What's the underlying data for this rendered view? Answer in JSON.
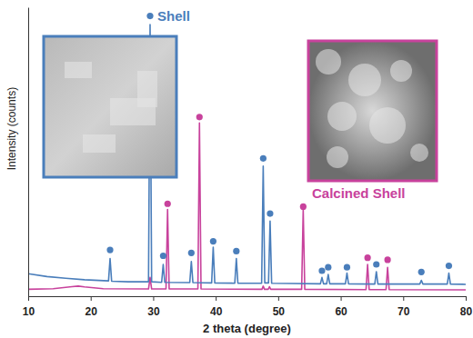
{
  "chart_data": {
    "type": "line",
    "x_label": "2 theta (degree)",
    "y_label": "Intensity (counts)",
    "xlim": [
      10,
      80
    ],
    "xticks": [
      10,
      20,
      30,
      40,
      50,
      60,
      70,
      80
    ],
    "ylim": [
      0,
      100
    ],
    "tick_labels": "x",
    "grid": false,
    "series": [
      {
        "name": "Shell",
        "color": "#4a7ebb",
        "marker": "circle",
        "x": [
          10,
          13,
          16,
          19,
          22.85,
          23.1,
          23.35,
          26,
          29.25,
          29.5,
          29.75,
          31.35,
          31.6,
          31.85,
          35.85,
          36.1,
          36.35,
          39.35,
          39.6,
          39.85,
          43.05,
          43.3,
          43.55,
          47.35,
          47.6,
          47.85,
          48.45,
          48.7,
          48.95,
          52,
          56.75,
          57.0,
          57.25,
          57.75,
          58.0,
          58.25,
          60.75,
          61.0,
          61.25,
          65.45,
          65.7,
          65.95,
          72.65,
          72.9,
          73.15,
          77.05,
          77.3,
          77.55,
          80
        ],
        "values": [
          7.8,
          6.8,
          6.2,
          5.7,
          5.3,
          13,
          5.2,
          5.0,
          5.0,
          94,
          5.0,
          4.8,
          11,
          4.8,
          4.7,
          12,
          4.7,
          4.6,
          17,
          4.6,
          4.5,
          13,
          4.5,
          4.5,
          45,
          4.6,
          4.6,
          26,
          4.5,
          4.4,
          4.3,
          6.5,
          4.3,
          4.3,
          7.5,
          4.3,
          4.3,
          8,
          4.3,
          4.2,
          8.5,
          4.2,
          4.2,
          5.5,
          4.2,
          4.2,
          8,
          4.2,
          4.1
        ],
        "peaks": {
          "x": [
            23.1,
            29.5,
            31.6,
            36.1,
            39.6,
            43.3,
            47.6,
            48.7,
            57.0,
            58.0,
            61.0,
            65.7,
            72.9,
            77.3
          ],
          "values": [
            16,
            97,
            14,
            15,
            19,
            15.6,
            47.7,
            28.6,
            8.8,
            10,
            10,
            11,
            8.4,
            10.5
          ]
        }
      },
      {
        "name": "Calcined Shell",
        "color": "#c8429c",
        "marker": "circle",
        "x": [
          10,
          14,
          17,
          18,
          19,
          22,
          29.25,
          29.5,
          29.75,
          32.05,
          32.3,
          32.55,
          37.15,
          37.4,
          37.65,
          47.4,
          47.6,
          47.8,
          48.4,
          48.6,
          48.8,
          53.75,
          54.0,
          54.25,
          64.05,
          64.3,
          64.55,
          67.25,
          67.5,
          67.75,
          80
        ],
        "values": [
          2.4,
          2.6,
          3.3,
          3.5,
          3.2,
          2.6,
          2.5,
          6.5,
          2.5,
          2.5,
          30,
          2.5,
          2.5,
          60,
          2.5,
          2.4,
          3.5,
          2.4,
          2.4,
          3.3,
          2.4,
          2.4,
          30,
          2.4,
          2.3,
          11,
          2.3,
          2.3,
          10,
          2.3,
          2.2
        ],
        "peaks": {
          "x": [
            32.3,
            37.4,
            54.0,
            64.3,
            67.5
          ],
          "values": [
            32,
            62,
            31,
            13.3,
            12.6
          ]
        }
      }
    ]
  }
}
